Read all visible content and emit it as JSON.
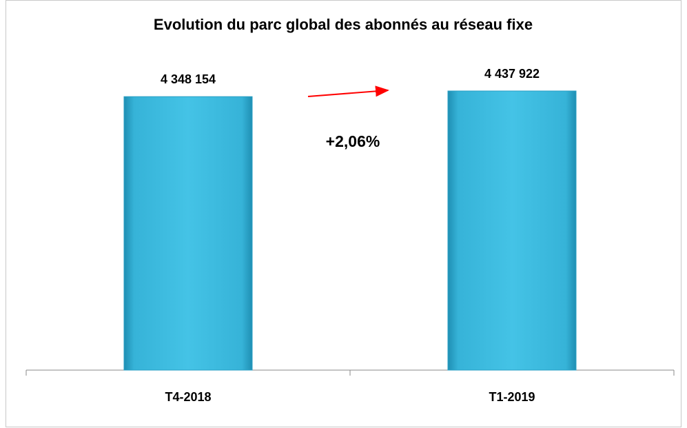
{
  "chart_data": {
    "type": "bar",
    "title": "Evolution du parc global des abonnés au réseau fixe",
    "categories": [
      "T4-2018",
      "T1-2019"
    ],
    "values": [
      4348154,
      4437922
    ],
    "value_labels": [
      "4 348 154",
      "4 437 922"
    ],
    "color": "#3bbbe0",
    "annotations": [
      "+2,06%"
    ]
  }
}
